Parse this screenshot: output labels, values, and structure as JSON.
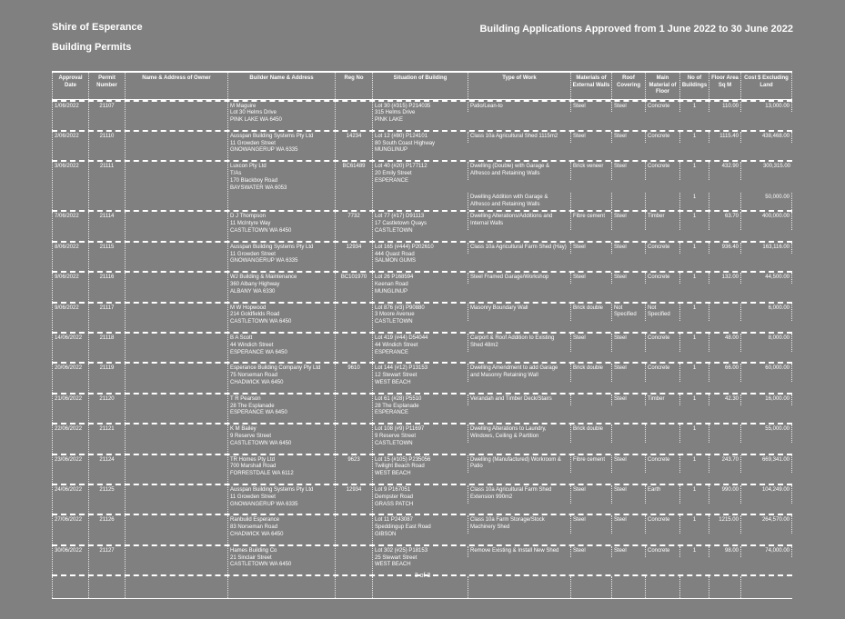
{
  "header": {
    "org": "Shire of Esperance",
    "permits_label": "Building Permits",
    "title": "Building Applications Approved from 1 June 2022 to 30 June 2022"
  },
  "footer": {
    "page": "3 of 3"
  },
  "colors": {
    "background": "#808080",
    "text": "#ffffff",
    "rules": "#ffffff"
  },
  "table": {
    "columns": [
      "Approval Date",
      "Permit Number",
      "Name & Address of Owner",
      "Builder Name & Address",
      "Reg No",
      "Situation of Building",
      "Type of Work",
      "Materials of External Walls",
      "Roof Covering",
      "Main Material of Floor",
      "No of Buildings",
      "Floor Area Sq M",
      "Cost $ Excluding Land"
    ],
    "rows": [
      {
        "approval_date": "1/06/2022",
        "permit_number": "21107",
        "owner": "",
        "builder": [
          "M Maguire",
          "Lot 30 Helms Drive",
          "PINK LAKE WA 6450"
        ],
        "reg_no": "",
        "situation": [
          "Lot 30 (#315) P214035",
          "315 Helms Drive",
          "PINK LAKE"
        ],
        "works": [
          {
            "type": "Patio/Lean-to",
            "walls": "Steel",
            "roof": "Steel",
            "floor": "Concrete",
            "buildings": "1",
            "area": "110.00",
            "cost": "13,000.00"
          }
        ]
      },
      {
        "approval_date": "2/06/2022",
        "permit_number": "21110",
        "owner": "",
        "builder": [
          "Ausspan Building Systems Pty Ltd",
          "11 Growden Street",
          "GNOWANGERUP WA 6335"
        ],
        "reg_no": "14234",
        "situation": [
          "Lot 12 (#80) P124101",
          "80 South Coast Highway",
          "MUNGLINUP"
        ],
        "works": [
          {
            "type": "Class 10a Agricultural Shed 1115m2",
            "walls": "Steel",
            "roof": "Steel",
            "floor": "Concrete",
            "buildings": "1",
            "area": "1115.40",
            "cost": "438,468.00"
          }
        ]
      },
      {
        "approval_date": "3/06/2022",
        "permit_number": "21111",
        "owner": "",
        "builder": [
          "Luxcon Pty Ltd",
          "T/As",
          "170 Blackboy Road",
          "BAYSWATER WA 6053"
        ],
        "reg_no": "BC61489",
        "situation": [
          "Lot 40 (#20) P177112",
          "20 Emily Street",
          "ESPERANCE"
        ],
        "works": [
          {
            "type": "Dwelling (Double) with Garage & Alfresco and Retaining Walls",
            "walls": "Brick veneer",
            "roof": "Steel",
            "floor": "Concrete",
            "buildings": "1",
            "area": "432.90",
            "cost": "300,315.00"
          },
          {
            "type": "Dwelling Addition with Garage & Alfresco and Retaining Walls",
            "walls": "",
            "roof": "",
            "floor": "",
            "buildings": "1",
            "area": "",
            "cost": "50,000.00"
          }
        ]
      },
      {
        "approval_date": "7/06/2022",
        "permit_number": "21114",
        "owner": "",
        "builder": [
          "D J Thompson",
          "11 McIntyre Way",
          "CASTLETOWN WA 6450"
        ],
        "reg_no": "7732",
        "situation": [
          "Lot 77 (#17) D91113",
          "17 Castletown Quays",
          "CASTLETOWN"
        ],
        "works": [
          {
            "type": "Dwelling Alterations/Additions and Internal Walls",
            "walls": "Fibre cement",
            "roof": "Steel",
            "floor": "Timber",
            "buildings": "1",
            "area": "63.70",
            "cost": "400,000.00"
          }
        ]
      },
      {
        "approval_date": "8/06/2022",
        "permit_number": "21115",
        "owner": "",
        "builder": [
          "Ausspan Building Systems Pty Ltd",
          "11 Growden Street",
          "GNOWANGERUP WA 6335"
        ],
        "reg_no": "12934",
        "situation": [
          "Lot 165 (#444) P202610",
          "444 Quast Road",
          "SALMON GUMS"
        ],
        "works": [
          {
            "type": "Class 10a Agricultural Farm Shed (Hay)",
            "walls": "Steel",
            "roof": "Steel",
            "floor": "Concrete",
            "buildings": "1",
            "area": "936.40",
            "cost": "163,116.00"
          }
        ]
      },
      {
        "approval_date": "9/06/2022",
        "permit_number": "21116",
        "owner": "",
        "builder": [
          "WJ Building & Maintenance",
          "360 Albany Highway",
          "ALBANY WA 6330"
        ],
        "reg_no": "BC101970",
        "situation": [
          "Lot 26 P168594",
          "Keenan Road",
          "MUNGLINUP"
        ],
        "works": [
          {
            "type": "Steel Framed Garage/Workshop",
            "walls": "Steel",
            "roof": "Steel",
            "floor": "Concrete",
            "buildings": "1",
            "area": "132.00",
            "cost": "44,500.00"
          }
        ]
      },
      {
        "approval_date": "9/06/2022",
        "permit_number": "21117",
        "owner": "",
        "builder": [
          "M W Hopwood",
          "214 Goldfields Road",
          "CASTLETOWN WA 6450"
        ],
        "reg_no": "",
        "situation": [
          "Lot 876 (#3) P90880",
          "3 Moore Avenue",
          "CASTLETOWN"
        ],
        "works": [
          {
            "type": "Masonry Boundary Wall",
            "walls": "Brick double",
            "roof": "Not Specified",
            "floor": "Not Specified",
            "buildings": "1",
            "area": "",
            "cost": "6,000.00"
          }
        ]
      },
      {
        "approval_date": "14/06/2022",
        "permit_number": "21118",
        "owner": "",
        "builder": [
          "B A Scott",
          "44 Windich Street",
          "ESPERANCE WA 6450"
        ],
        "reg_no": "",
        "situation": [
          "Lot 419 (#44) D54044",
          "44 Windich Street",
          "ESPERANCE"
        ],
        "works": [
          {
            "type": "Carport & Roof Addition to Existing Shed 48m2",
            "walls": "Steel",
            "roof": "Steel",
            "floor": "Concrete",
            "buildings": "1",
            "area": "48.00",
            "cost": "8,000.00"
          }
        ]
      },
      {
        "approval_date": "20/06/2022",
        "permit_number": "21119",
        "owner": "",
        "builder": [
          "Esperance Building Company Pty Ltd",
          "75 Norseman Road",
          "CHADWICK WA 6450"
        ],
        "reg_no": "9610",
        "situation": [
          "Lot 144 (#12) P13153",
          "12 Stewart Street",
          "WEST BEACH"
        ],
        "works": [
          {
            "type": "Dwelling Amendment to add Garage and Masonry Retaining Wall",
            "walls": "Brick double",
            "roof": "Steel",
            "floor": "Concrete",
            "buildings": "1",
            "area": "66.00",
            "cost": "60,000.00"
          }
        ]
      },
      {
        "approval_date": "21/06/2022",
        "permit_number": "21120",
        "owner": "",
        "builder": [
          "T R Pearson",
          "28 The Esplanade",
          "ESPERANCE WA 6450"
        ],
        "reg_no": "",
        "situation": [
          "Lot 61 (#28) P5510",
          "28 The Esplanade",
          "ESPERANCE"
        ],
        "works": [
          {
            "type": "Verandah and Timber Deck/Stairs",
            "walls": "",
            "roof": "Steel",
            "floor": "Timber",
            "buildings": "1",
            "area": "42.30",
            "cost": "16,000.00"
          }
        ]
      },
      {
        "approval_date": "22/06/2022",
        "permit_number": "21121",
        "owner": "",
        "builder": [
          "K M Bailey",
          "9 Reserve Street",
          "CASTLETOWN WA 6450"
        ],
        "reg_no": "",
        "situation": [
          "Lot 108 (#9) P11697",
          "9 Reserve Street",
          "CASTLETOWN"
        ],
        "works": [
          {
            "type": "Dwelling Alterations to Laundry, Windows, Ceiling & Partition",
            "walls": "Brick double",
            "roof": "",
            "floor": "",
            "buildings": "1",
            "area": "",
            "cost": "55,000.00"
          }
        ]
      },
      {
        "approval_date": "23/06/2022",
        "permit_number": "21124",
        "owner": "",
        "builder": [
          "TR Homes Pty Ltd",
          "700 Marshall Road",
          "FORRESTDALE WA 6112"
        ],
        "reg_no": "9623",
        "situation": [
          "Lot 15 (#105) P235056",
          "Twilight Beach Road",
          "WEST BEACH"
        ],
        "works": [
          {
            "type": "Dwelling (Manufactured) Workroom & Patio",
            "walls": "Fibre cement",
            "roof": "Steel",
            "floor": "Concrete",
            "buildings": "1",
            "area": "243.70",
            "cost": "669,341.00"
          }
        ]
      },
      {
        "approval_date": "24/06/2022",
        "permit_number": "21125",
        "owner": "",
        "builder": [
          "Ausspan Building Systems Pty Ltd",
          "11 Growden Street",
          "GNOWANGERUP WA 6335"
        ],
        "reg_no": "12934",
        "situation": [
          "Lot 9 P167051",
          "Dempster Road",
          "GRASS PATCH"
        ],
        "works": [
          {
            "type": "Class 10a Agricultural Farm Shed Extension 990m2",
            "walls": "Steel",
            "roof": "Steel",
            "floor": "Earth",
            "buildings": "1",
            "area": "990.00",
            "cost": "104,249.00"
          }
        ]
      },
      {
        "approval_date": "27/06/2022",
        "permit_number": "21126",
        "owner": "",
        "builder": [
          "Ranbuild Esperance",
          "83 Norseman Road",
          "CHADWICK WA 6450"
        ],
        "reg_no": "",
        "situation": [
          "Lot 11 P243087",
          "Speddingup East Road",
          "GIBSON"
        ],
        "works": [
          {
            "type": "Class 10a Farm Storage/Stock Machinery Shed",
            "walls": "Steel",
            "roof": "Steel",
            "floor": "Concrete",
            "buildings": "1",
            "area": "1215.00",
            "cost": "264,570.00"
          }
        ]
      },
      {
        "approval_date": "30/06/2022",
        "permit_number": "21127",
        "owner": "",
        "builder": [
          "Hames Building Co",
          "21 Sinclair Street",
          "CASTLETOWN WA 6450"
        ],
        "reg_no": "",
        "situation": [
          "Lot 302 (#25) P18153",
          "25 Stewart Street",
          "WEST BEACH"
        ],
        "works": [
          {
            "type": "Remove Existing & Install New Shed",
            "walls": "Steel",
            "roof": "Steel",
            "floor": "Concrete",
            "buildings": "1",
            "area": "98.00",
            "cost": "74,000.00"
          }
        ]
      }
    ]
  }
}
